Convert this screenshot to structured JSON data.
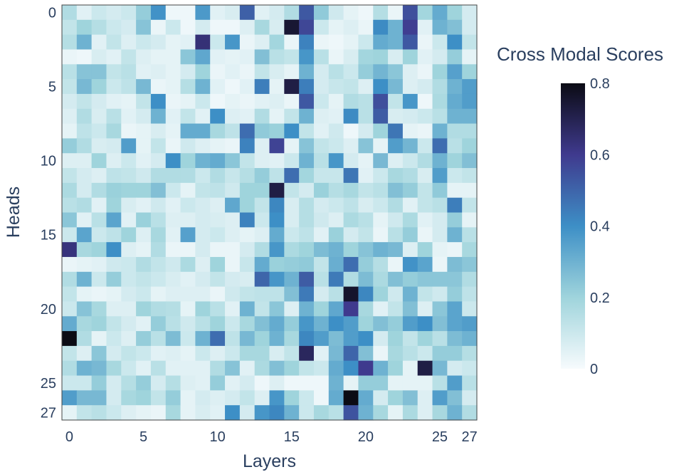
{
  "chart_data": {
    "type": "heatmap",
    "xlabel": "Layers",
    "ylabel": "Heads",
    "colorbar_title": "Cross Modal Scores",
    "x_ticks": [
      0,
      5,
      10,
      15,
      20,
      25,
      27
    ],
    "y_ticks": [
      0,
      5,
      10,
      15,
      20,
      25,
      27
    ],
    "colorbar_ticks": [
      "0",
      "0.2",
      "0.4",
      "0.6",
      "0.8"
    ],
    "colorscale": [
      "#f7fbfd",
      "#9fd4dc",
      "#3d8fc6",
      "#3f3a8e",
      "#0b0b14"
    ],
    "zmin": 0,
    "zmax": 0.8,
    "grid": false,
    "legend": "colorbar-right",
    "z": [
      [
        0.16,
        0.05,
        0.1,
        0.08,
        0.1,
        0.22,
        0.39,
        0.02,
        0.02,
        0.37,
        0.05,
        0.07,
        0.51,
        0.05,
        0.08,
        0.16,
        0.53,
        0.23,
        0.09,
        0.04,
        0.02,
        0.15,
        0.03,
        0.55,
        0.19,
        0.32,
        0.2,
        0.08
      ],
      [
        0.12,
        0.2,
        0.15,
        0.1,
        0.08,
        0.25,
        0.03,
        0.1,
        0.02,
        0.08,
        0.02,
        0.02,
        0.06,
        0.18,
        0.07,
        0.75,
        0.57,
        0.1,
        0.04,
        0.06,
        0.03,
        0.41,
        0.3,
        0.59,
        0.05,
        0.3,
        0.26,
        0.08
      ],
      [
        0.15,
        0.3,
        0.05,
        0.12,
        0.06,
        0.1,
        0.08,
        0.04,
        0.05,
        0.64,
        0.1,
        0.38,
        0.03,
        0.06,
        0.19,
        0.03,
        0.43,
        0.03,
        0.02,
        0.04,
        0.1,
        0.32,
        0.3,
        0.53,
        0.03,
        0.1,
        0.4,
        0.12
      ],
      [
        0.03,
        0.02,
        0.07,
        0.05,
        0.12,
        0.06,
        0.04,
        0.04,
        0.24,
        0.33,
        0.05,
        0.04,
        0.05,
        0.26,
        0.14,
        0.12,
        0.38,
        0.14,
        0.03,
        0.07,
        0.19,
        0.2,
        0.07,
        0.2,
        0.05,
        0.08,
        0.22,
        0.04
      ],
      [
        0.14,
        0.25,
        0.25,
        0.12,
        0.14,
        0.05,
        0.06,
        0.04,
        0.08,
        0.2,
        0.03,
        0.05,
        0.03,
        0.12,
        0.07,
        0.04,
        0.3,
        0.08,
        0.14,
        0.1,
        0.22,
        0.29,
        0.24,
        0.06,
        0.03,
        0.2,
        0.35,
        0.2
      ],
      [
        0.12,
        0.28,
        0.2,
        0.1,
        0.13,
        0.28,
        0.03,
        0.04,
        0.15,
        0.3,
        0.05,
        0.02,
        0.05,
        0.44,
        0.04,
        0.72,
        0.44,
        0.08,
        0.11,
        0.12,
        0.06,
        0.4,
        0.28,
        0.06,
        0.08,
        0.16,
        0.3,
        0.36
      ],
      [
        0.08,
        0.12,
        0.08,
        0.05,
        0.04,
        0.12,
        0.4,
        0.03,
        0.04,
        0.1,
        0.02,
        0.04,
        0.03,
        0.05,
        0.06,
        0.03,
        0.53,
        0.1,
        0.04,
        0.16,
        0.14,
        0.55,
        0.12,
        0.38,
        0.02,
        0.17,
        0.32,
        0.36
      ],
      [
        0.06,
        0.16,
        0.07,
        0.14,
        0.05,
        0.08,
        0.3,
        0.05,
        0.12,
        0.05,
        0.4,
        0.06,
        0.05,
        0.16,
        0.04,
        0.12,
        0.3,
        0.06,
        0.05,
        0.41,
        0.14,
        0.52,
        0.07,
        0.08,
        0.1,
        0.14,
        0.3,
        0.3
      ],
      [
        0.04,
        0.13,
        0.1,
        0.18,
        0.03,
        0.04,
        0.07,
        0.04,
        0.32,
        0.32,
        0.18,
        0.13,
        0.48,
        0.23,
        0.21,
        0.4,
        0.12,
        0.05,
        0.09,
        0.02,
        0.08,
        0.2,
        0.46,
        0.04,
        0.03,
        0.3,
        0.16,
        0.16
      ],
      [
        0.22,
        0.16,
        0.07,
        0.08,
        0.36,
        0.04,
        0.12,
        0.03,
        0.09,
        0.06,
        0.04,
        0.03,
        0.43,
        0.06,
        0.58,
        0.04,
        0.25,
        0.12,
        0.1,
        0.06,
        0.25,
        0.04,
        0.36,
        0.29,
        0.1,
        0.48,
        0.14,
        0.2
      ],
      [
        0.06,
        0.06,
        0.2,
        0.06,
        0.1,
        0.05,
        0.08,
        0.4,
        0.2,
        0.3,
        0.32,
        0.24,
        0.12,
        0.06,
        0.05,
        0.1,
        0.3,
        0.14,
        0.38,
        0.08,
        0.04,
        0.28,
        0.06,
        0.1,
        0.16,
        0.3,
        0.2,
        0.26
      ],
      [
        0.12,
        0.08,
        0.06,
        0.13,
        0.12,
        0.09,
        0.16,
        0.16,
        0.16,
        0.1,
        0.16,
        0.11,
        0.15,
        0.22,
        0.13,
        0.48,
        0.19,
        0.11,
        0.11,
        0.46,
        0.05,
        0.1,
        0.18,
        0.16,
        0.07,
        0.36,
        0.1,
        0.12
      ],
      [
        0.17,
        0.08,
        0.16,
        0.21,
        0.2,
        0.2,
        0.26,
        0.1,
        0.04,
        0.12,
        0.13,
        0.09,
        0.2,
        0.2,
        0.72,
        0.12,
        0.08,
        0.21,
        0.15,
        0.18,
        0.12,
        0.14,
        0.26,
        0.22,
        0.12,
        0.23,
        0.04,
        0.04
      ],
      [
        0.14,
        0.16,
        0.05,
        0.2,
        0.07,
        0.05,
        0.09,
        0.05,
        0.1,
        0.08,
        0.06,
        0.33,
        0.2,
        0.12,
        0.42,
        0.07,
        0.15,
        0.08,
        0.1,
        0.13,
        0.07,
        0.1,
        0.16,
        0.05,
        0.12,
        0.14,
        0.44,
        0.12
      ],
      [
        0.24,
        0.05,
        0.14,
        0.34,
        0.05,
        0.21,
        0.14,
        0.06,
        0.06,
        0.08,
        0.07,
        0.06,
        0.43,
        0.1,
        0.4,
        0.07,
        0.15,
        0.09,
        0.06,
        0.17,
        0.14,
        0.04,
        0.09,
        0.17,
        0.05,
        0.08,
        0.22,
        0.04
      ],
      [
        0.1,
        0.34,
        0.1,
        0.13,
        0.2,
        0.06,
        0.18,
        0.05,
        0.35,
        0.08,
        0.1,
        0.06,
        0.04,
        0.06,
        0.32,
        0.1,
        0.13,
        0.05,
        0.21,
        0.08,
        0.12,
        0.03,
        0.14,
        0.22,
        0.03,
        0.08,
        0.3,
        0.14
      ],
      [
        0.63,
        0.18,
        0.2,
        0.4,
        0.06,
        0.04,
        0.16,
        0.03,
        0.03,
        0.08,
        0.03,
        0.03,
        0.08,
        0.16,
        0.38,
        0.17,
        0.2,
        0.27,
        0.3,
        0.2,
        0.25,
        0.3,
        0.28,
        0.06,
        0.2,
        0.04,
        0.03,
        0.18
      ],
      [
        0.03,
        0.04,
        0.05,
        0.09,
        0.1,
        0.16,
        0.12,
        0.09,
        0.17,
        0.06,
        0.2,
        0.03,
        0.11,
        0.32,
        0.21,
        0.22,
        0.23,
        0.12,
        0.31,
        0.48,
        0.22,
        0.15,
        0.03,
        0.39,
        0.34,
        0.03,
        0.27,
        0.24
      ],
      [
        0.16,
        0.3,
        0.1,
        0.22,
        0.1,
        0.12,
        0.1,
        0.07,
        0.05,
        0.08,
        0.12,
        0.08,
        0.07,
        0.5,
        0.38,
        0.3,
        0.52,
        0.14,
        0.45,
        0.16,
        0.27,
        0.17,
        0.26,
        0.22,
        0.24,
        0.24,
        0.24,
        0.16
      ],
      [
        0.12,
        0.04,
        0.03,
        0.04,
        0.08,
        0.1,
        0.04,
        0.06,
        0.06,
        0.06,
        0.03,
        0.09,
        0.12,
        0.13,
        0.13,
        0.26,
        0.45,
        0.08,
        0.14,
        0.76,
        0.42,
        0.2,
        0.09,
        0.3,
        0.12,
        0.09,
        0.22,
        0.13
      ],
      [
        0.1,
        0.25,
        0.18,
        0.06,
        0.06,
        0.2,
        0.16,
        0.15,
        0.04,
        0.2,
        0.14,
        0.05,
        0.3,
        0.12,
        0.24,
        0.06,
        0.3,
        0.2,
        0.33,
        0.6,
        0.18,
        0.05,
        0.12,
        0.26,
        0.06,
        0.24,
        0.34,
        0.1
      ],
      [
        0.32,
        0.18,
        0.2,
        0.12,
        0.08,
        0.05,
        0.22,
        0.14,
        0.09,
        0.14,
        0.2,
        0.1,
        0.18,
        0.26,
        0.32,
        0.22,
        0.38,
        0.3,
        0.4,
        0.36,
        0.2,
        0.26,
        0.22,
        0.36,
        0.4,
        0.26,
        0.34,
        0.36
      ],
      [
        0.8,
        0.16,
        0.04,
        0.1,
        0.06,
        0.22,
        0.14,
        0.27,
        0.1,
        0.3,
        0.48,
        0.13,
        0.28,
        0.2,
        0.3,
        0.18,
        0.42,
        0.36,
        0.27,
        0.36,
        0.4,
        0.08,
        0.2,
        0.12,
        0.2,
        0.14,
        0.27,
        0.3
      ],
      [
        0.12,
        0.06,
        0.24,
        0.08,
        0.12,
        0.1,
        0.05,
        0.06,
        0.04,
        0.1,
        0.06,
        0.1,
        0.18,
        0.18,
        0.07,
        0.12,
        0.68,
        0.05,
        0.28,
        0.5,
        0.26,
        0.03,
        0.18,
        0.14,
        0.1,
        0.22,
        0.22,
        0.15
      ],
      [
        0.16,
        0.3,
        0.28,
        0.18,
        0.1,
        0.05,
        0.14,
        0.05,
        0.05,
        0.05,
        0.16,
        0.25,
        0.05,
        0.17,
        0.26,
        0.2,
        0.12,
        0.1,
        0.32,
        0.4,
        0.6,
        0.3,
        0.2,
        0.04,
        0.72,
        0.28,
        0.08,
        0.1
      ],
      [
        0.1,
        0.1,
        0.22,
        0.08,
        0.15,
        0.22,
        0.08,
        0.15,
        0.06,
        0.05,
        0.22,
        0.05,
        0.08,
        0.02,
        0.06,
        0.02,
        0.02,
        0.02,
        0.3,
        0.04,
        0.22,
        0.22,
        0.04,
        0.04,
        0.04,
        0.14,
        0.36,
        0.14
      ],
      [
        0.36,
        0.28,
        0.28,
        0.08,
        0.18,
        0.2,
        0.12,
        0.22,
        0.04,
        0.08,
        0.06,
        0.08,
        0.12,
        0.06,
        0.38,
        0.2,
        0.1,
        0.02,
        0.32,
        0.8,
        0.32,
        0.08,
        0.2,
        0.26,
        0.06,
        0.36,
        0.26,
        0.08
      ],
      [
        0.04,
        0.12,
        0.14,
        0.1,
        0.06,
        0.04,
        0.03,
        0.18,
        0.04,
        0.07,
        0.05,
        0.4,
        0.08,
        0.38,
        0.42,
        0.3,
        0.1,
        0.18,
        0.14,
        0.54,
        0.3,
        0.18,
        0.04,
        0.17,
        0.06,
        0.18,
        0.3,
        0.16
      ]
    ]
  }
}
